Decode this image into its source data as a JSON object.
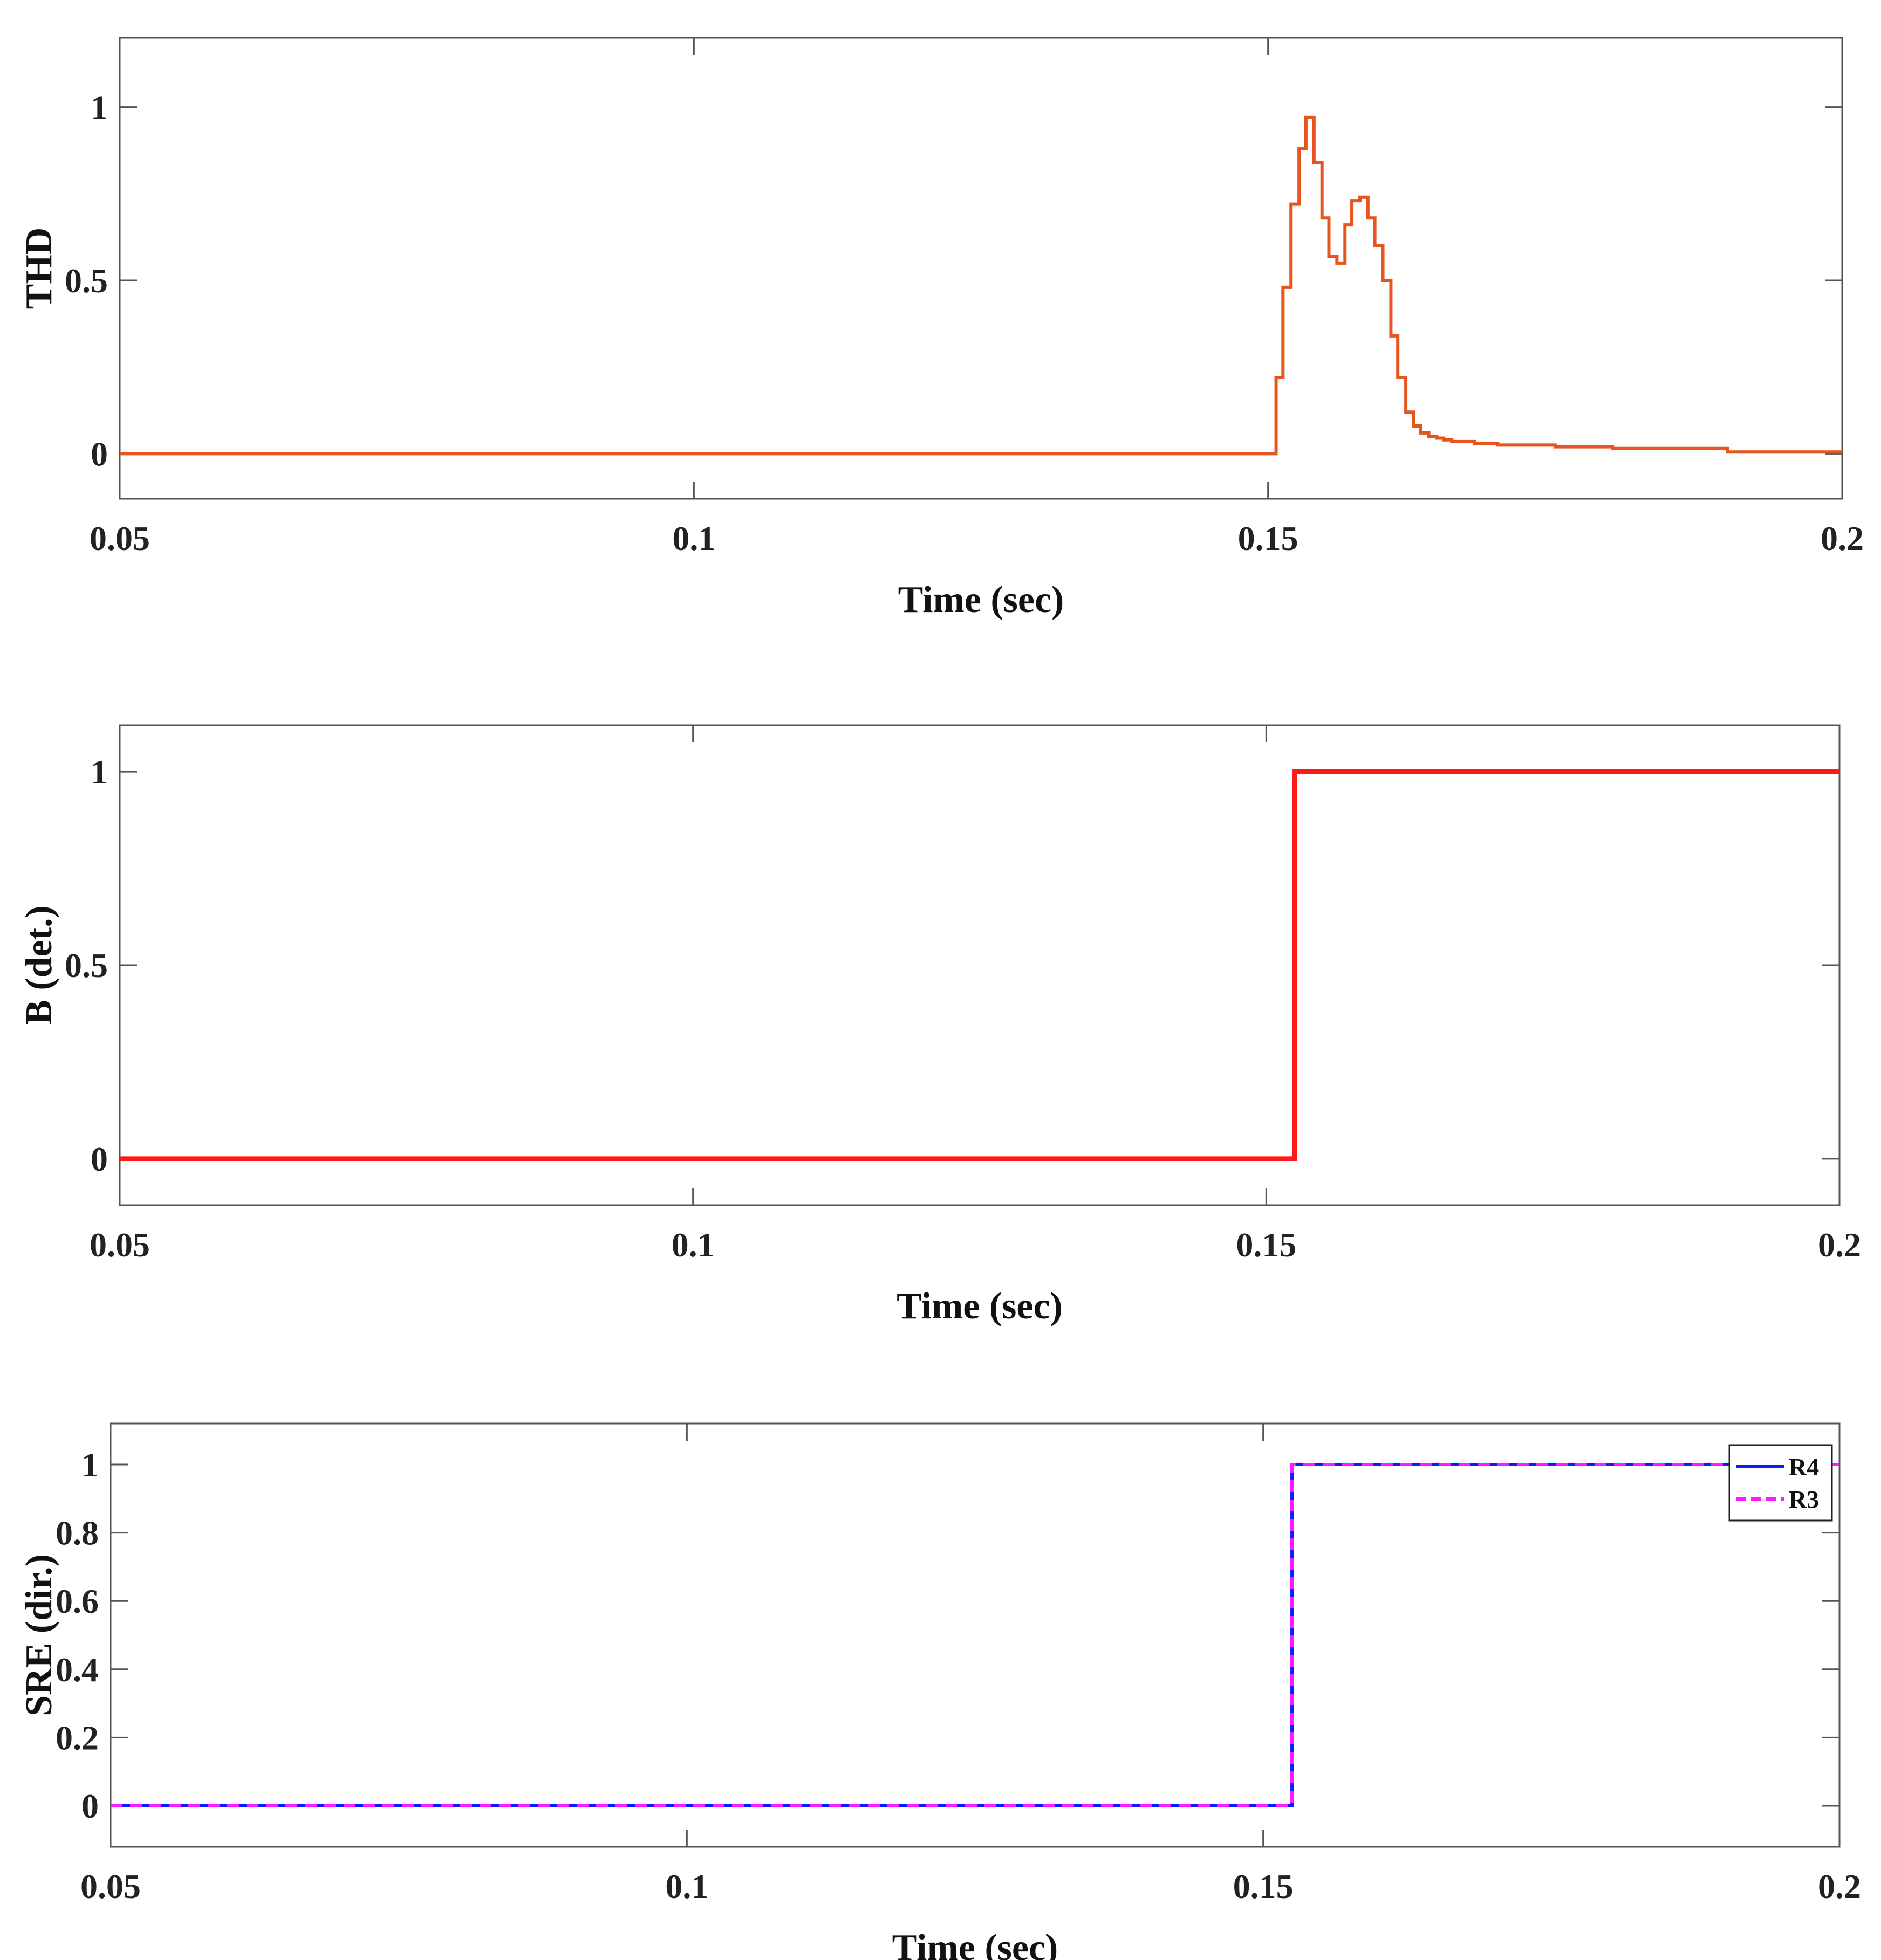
{
  "chart_data": [
    {
      "type": "line",
      "xlabel": "Time (sec)",
      "ylabel": "THD",
      "xlim": [
        0.05,
        0.2
      ],
      "ylim": [
        -0.13,
        1.2
      ],
      "xticks": [
        0.05,
        0.1,
        0.15,
        0.2
      ],
      "xtick_labels": [
        "0.05",
        "0.1",
        "0.15",
        "0.2"
      ],
      "yticks": [
        0,
        0.5,
        1
      ],
      "ytick_labels": [
        "0",
        "0.5",
        "1"
      ],
      "grid": false,
      "series": [
        {
          "color": "#e8541e",
          "style": "solid",
          "step": true,
          "x": [
            0.05,
            0.1,
            0.15,
            0.1507,
            0.1513,
            0.152,
            0.1527,
            0.1533,
            0.154,
            0.1547,
            0.1553,
            0.156,
            0.1567,
            0.1573,
            0.158,
            0.1587,
            0.1593,
            0.16,
            0.1607,
            0.1613,
            0.162,
            0.1627,
            0.1633,
            0.164,
            0.1647,
            0.1653,
            0.166,
            0.168,
            0.17,
            0.175,
            0.18,
            0.185,
            0.19,
            0.2
          ],
          "y": [
            0,
            0,
            0,
            0.22,
            0.48,
            0.72,
            0.88,
            0.97,
            0.84,
            0.68,
            0.57,
            0.55,
            0.66,
            0.73,
            0.74,
            0.68,
            0.6,
            0.5,
            0.34,
            0.22,
            0.12,
            0.08,
            0.06,
            0.05,
            0.045,
            0.04,
            0.035,
            0.03,
            0.025,
            0.02,
            0.015,
            0.015,
            0.005,
            0.005
          ]
        }
      ]
    },
    {
      "type": "line",
      "xlabel": "Time (sec)",
      "ylabel": "B (det.)",
      "xlim": [
        0.05,
        0.2
      ],
      "ylim": [
        -0.12,
        1.12
      ],
      "xticks": [
        0.05,
        0.1,
        0.15,
        0.2
      ],
      "xtick_labels": [
        "0.05",
        "0.1",
        "0.15",
        "0.2"
      ],
      "yticks": [
        0,
        0.5,
        1
      ],
      "ytick_labels": [
        "0",
        "0.5",
        "1"
      ],
      "grid": false,
      "series": [
        {
          "color": "#ff1a1a",
          "style": "solid",
          "step": true,
          "x": [
            0.05,
            0.1525,
            0.2
          ],
          "y": [
            0,
            1,
            1
          ]
        }
      ]
    },
    {
      "type": "line",
      "xlabel": "Time (sec)",
      "ylabel": "SRE (dir.)",
      "xlim": [
        0.05,
        0.2
      ],
      "ylim": [
        -0.12,
        1.12
      ],
      "xticks": [
        0.05,
        0.1,
        0.15,
        0.2
      ],
      "xtick_labels": [
        "0.05",
        "0.1",
        "0.15",
        "0.2"
      ],
      "yticks": [
        0,
        0.2,
        0.4,
        0.6,
        0.8,
        1
      ],
      "ytick_labels": [
        "0",
        "0.2",
        "0.4",
        "0.6",
        "0.8",
        "1"
      ],
      "grid": false,
      "legend": {
        "placement": "top-right"
      },
      "series": [
        {
          "name": "R4",
          "color": "#0a1bff",
          "style": "solid",
          "step": true,
          "x": [
            0.05,
            0.1525,
            0.2
          ],
          "y": [
            0,
            1,
            1
          ]
        },
        {
          "name": "R3",
          "color": "#ff1aff",
          "style": "dashed",
          "step": true,
          "x": [
            0.05,
            0.1525,
            0.2
          ],
          "y": [
            0,
            1,
            1
          ]
        }
      ]
    }
  ]
}
